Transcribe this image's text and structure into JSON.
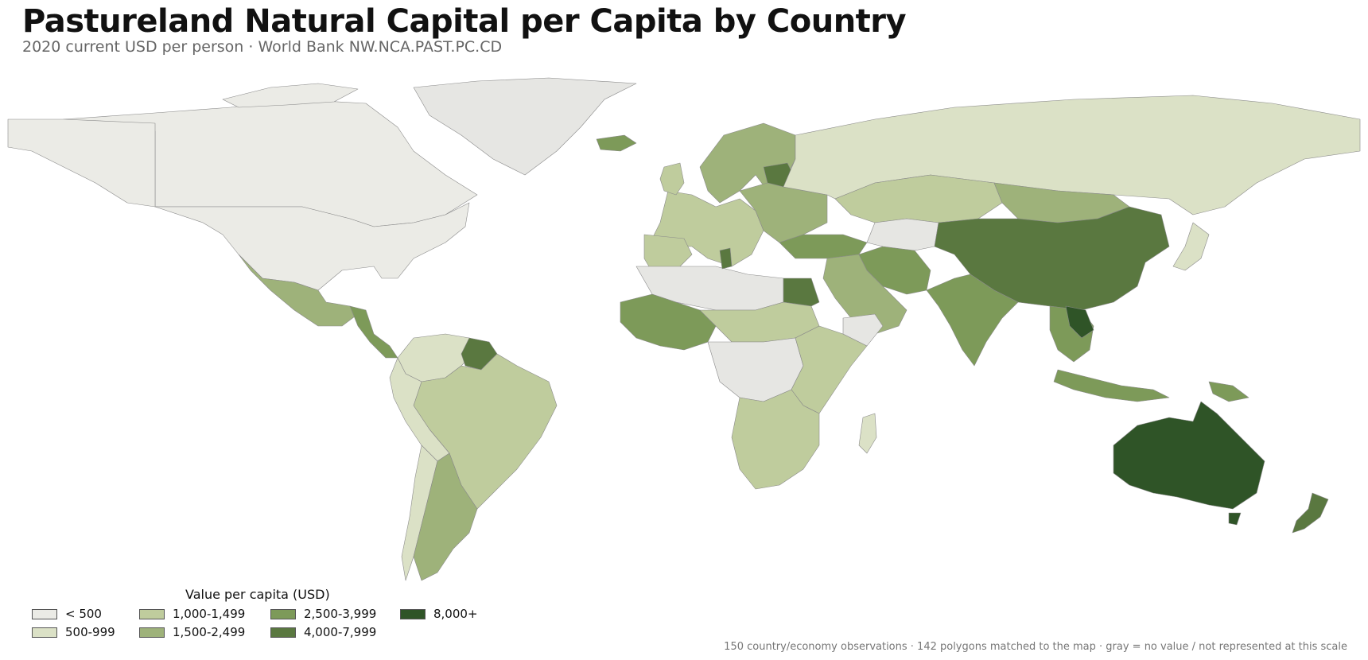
{
  "title": "Pastureland Natural Capital per Capita by Country",
  "subtitle": "2020 current USD per person · World Bank NW.NCA.PAST.PC.CD",
  "legend": {
    "title": "Value per capita (USD)",
    "bins": [
      {
        "label": "< 500",
        "color": "#ebebe6"
      },
      {
        "label": "500-999",
        "color": "#dbe1c6"
      },
      {
        "label": "1,000-1,499",
        "color": "#bfcc9d"
      },
      {
        "label": "1,500-2,499",
        "color": "#9eb27a"
      },
      {
        "label": "2,500-3,999",
        "color": "#7d9a59"
      },
      {
        "label": "4,000-7,999",
        "color": "#5a7840"
      },
      {
        "label": "8,000+",
        "color": "#2f5427"
      }
    ],
    "no_data_color": "#e6e6e3"
  },
  "footnote": "150 country/economy observations · 142 polygons matched to the map · gray = no value / not represented at this scale",
  "map_data": {
    "type": "choropleth",
    "region_bins": {
      "canada": "< 500",
      "united-states": "< 500",
      "greenland": "no data",
      "mexico": "1,500-2,499",
      "central-america": "2,500-3,999",
      "colombia-venezuela": "500-999",
      "guyana-suriname": "4,000-7,999",
      "peru-bolivia": "500-999",
      "brazil": "1,000-1,499",
      "argentina": "1,500-2,499",
      "chile": "500-999",
      "europe": "1,000-1,499",
      "eastern-europe": "1,500-2,499",
      "scandinavia": "1,500-2,499",
      "iceland": "2,500-3,999",
      "baltics": "4,000-7,999",
      "russia": "500-999",
      "kazakhstan": "1,000-1,499",
      "mongolia": "1,500-2,499",
      "turkey": "2,500-3,999",
      "north-africa": "no data",
      "egypt": "4,000-7,999",
      "tunisia": "4,000-7,999",
      "west-africa": "2,500-3,999",
      "sahel": "1,000-1,499",
      "central-africa": "no data",
      "east-africa": "1,000-1,499",
      "southern-africa": "1,000-1,499",
      "madagascar": "500-999",
      "middle-east": "1,500-2,499",
      "iran": "2,500-3,999",
      "india": "2,500-3,999",
      "china": "4,000-7,999",
      "southeast-asia": "2,500-3,999",
      "laos": "8,000+",
      "japan": "500-999",
      "indonesia": "2,500-3,999",
      "papua-new-guinea": "2,500-3,999",
      "australia": "8,000+",
      "new-zealand": "4,000-7,999"
    }
  }
}
